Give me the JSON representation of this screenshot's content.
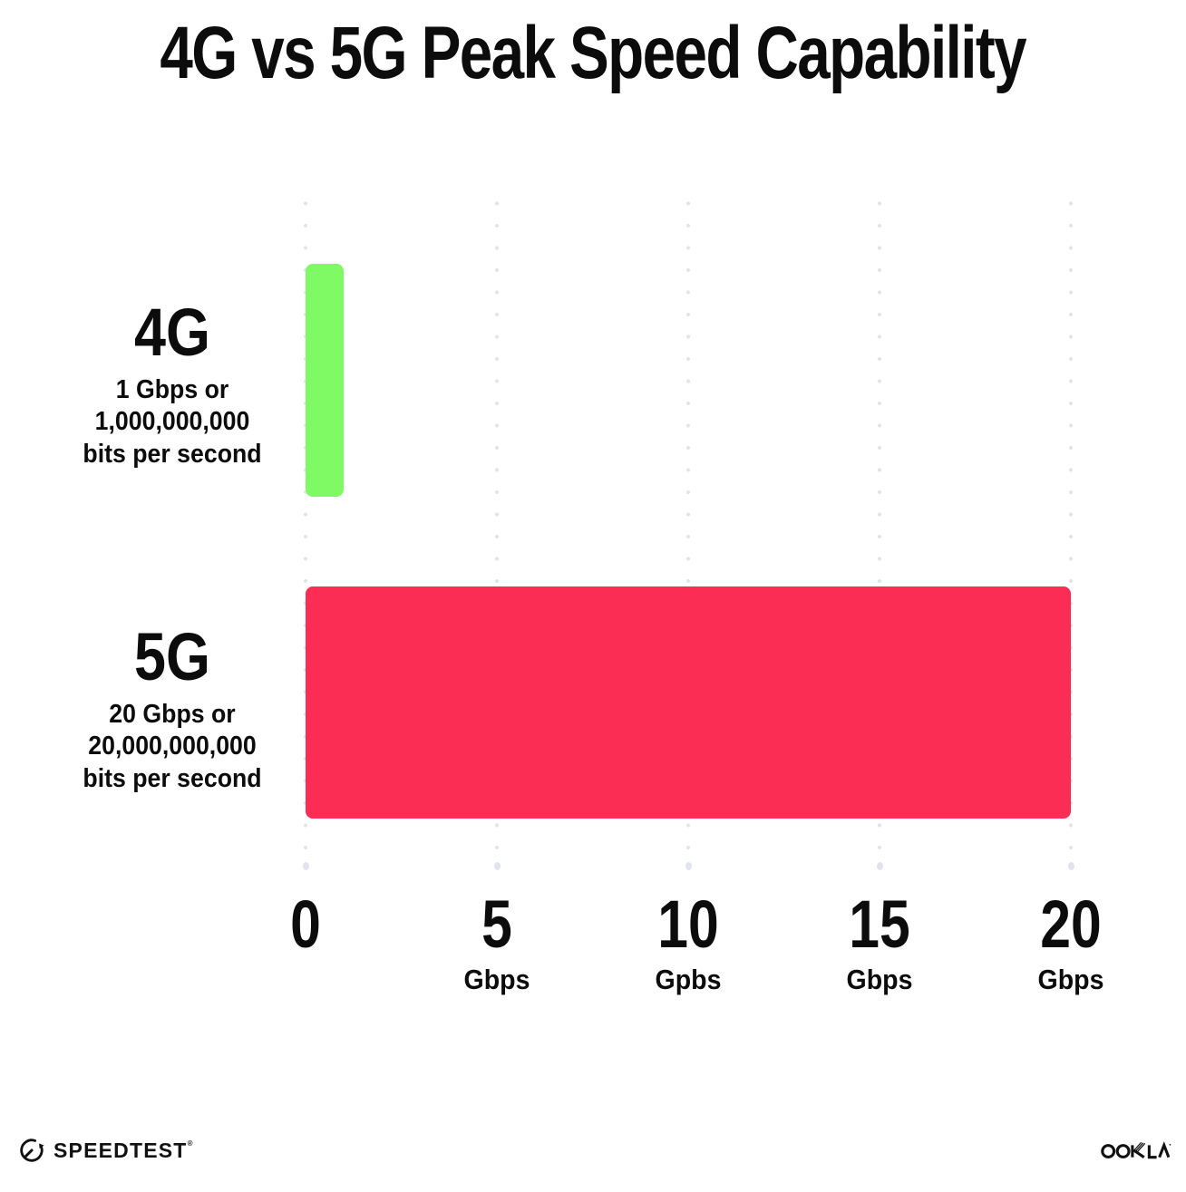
{
  "title": "4G vs 5G Peak Speed Capability",
  "chart_data": {
    "type": "bar",
    "orientation": "horizontal",
    "title": "4G vs 5G Peak Speed Capability",
    "xlabel": "",
    "ylabel": "",
    "xlim": [
      0,
      20
    ],
    "grid": "dotted vertical gridlines at 0,5,10,15,20",
    "legend": "none",
    "categories": [
      "4G",
      "5G"
    ],
    "values": [
      1,
      20
    ],
    "rows": [
      {
        "id": "4g",
        "label": "4G",
        "sublabel_lines": [
          "1 Gbps or",
          "1,000,000,000",
          "bits per second"
        ],
        "value_gbps": 1,
        "bar_color": "#7ff964"
      },
      {
        "id": "5g",
        "label": "5G",
        "sublabel_lines": [
          "20 Gbps or",
          "20,000,000,000",
          "bits per second"
        ],
        "value_gbps": 20,
        "bar_color": "#fc2d55"
      }
    ],
    "x_ticks": [
      {
        "value": 0,
        "number": "0",
        "unit": ""
      },
      {
        "value": 5,
        "number": "5",
        "unit": "Gbps"
      },
      {
        "value": 10,
        "number": "10",
        "unit": "Gpbs"
      },
      {
        "value": 15,
        "number": "15",
        "unit": "Gbps"
      },
      {
        "value": 20,
        "number": "20",
        "unit": "Gbps"
      }
    ]
  },
  "footer": {
    "speedtest_label": "SPEEDTEST",
    "speedtest_trademark": "®",
    "ookla_label": "OOKLA"
  },
  "colors": {
    "bar_4g": "#7ff964",
    "bar_5g": "#fc2d55",
    "grid_dot": "#e1e3ee",
    "text": "#0c0c0c",
    "background": "#ffffff"
  }
}
